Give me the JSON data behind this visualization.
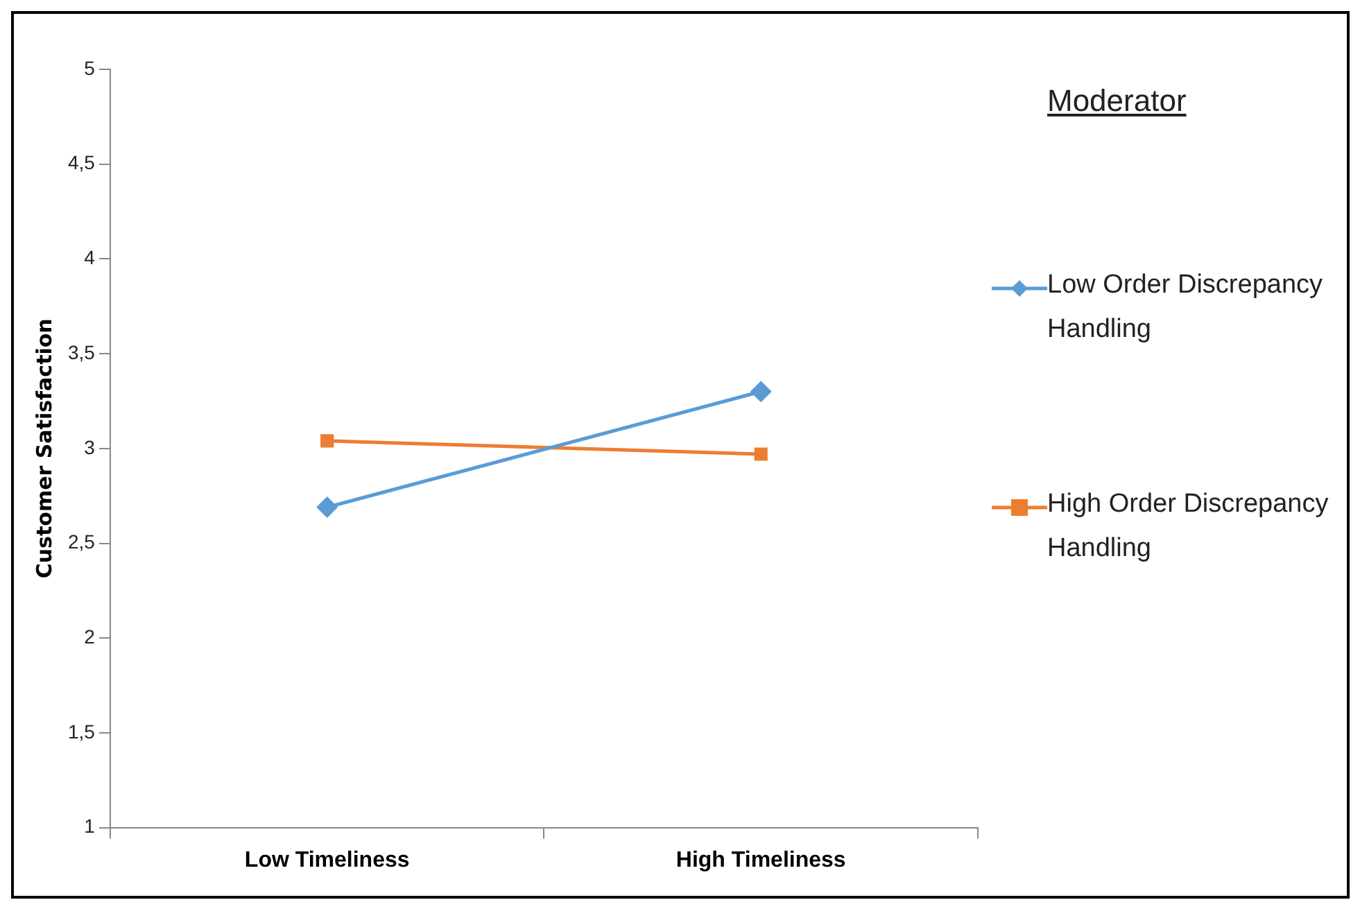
{
  "chart_data": {
    "type": "line",
    "ylabel": "Customer Satisfaction",
    "legend_title": "Moderator",
    "categories": [
      "Low Timeliness",
      "High Timeliness"
    ],
    "series": [
      {
        "name": "Low Order Discrepancy Handling",
        "color": "#5b9bd5",
        "marker": "diamond",
        "values": [
          2.69,
          3.3
        ]
      },
      {
        "name": "High Order Discrepancy Handling",
        "color": "#ed7d31",
        "marker": "square",
        "values": [
          3.04,
          2.97
        ]
      }
    ],
    "ylim": [
      1,
      5
    ],
    "yticks": [
      1,
      {
        "value": 1.5,
        "label": "1,5"
      },
      2,
      {
        "value": 2.5,
        "label": "2,5"
      },
      3,
      {
        "value": 3.5,
        "label": "3,5"
      },
      4,
      {
        "value": 4.5,
        "label": "4,5"
      },
      5
    ],
    "grid": false,
    "legend": "right",
    "line_style": "solid"
  }
}
